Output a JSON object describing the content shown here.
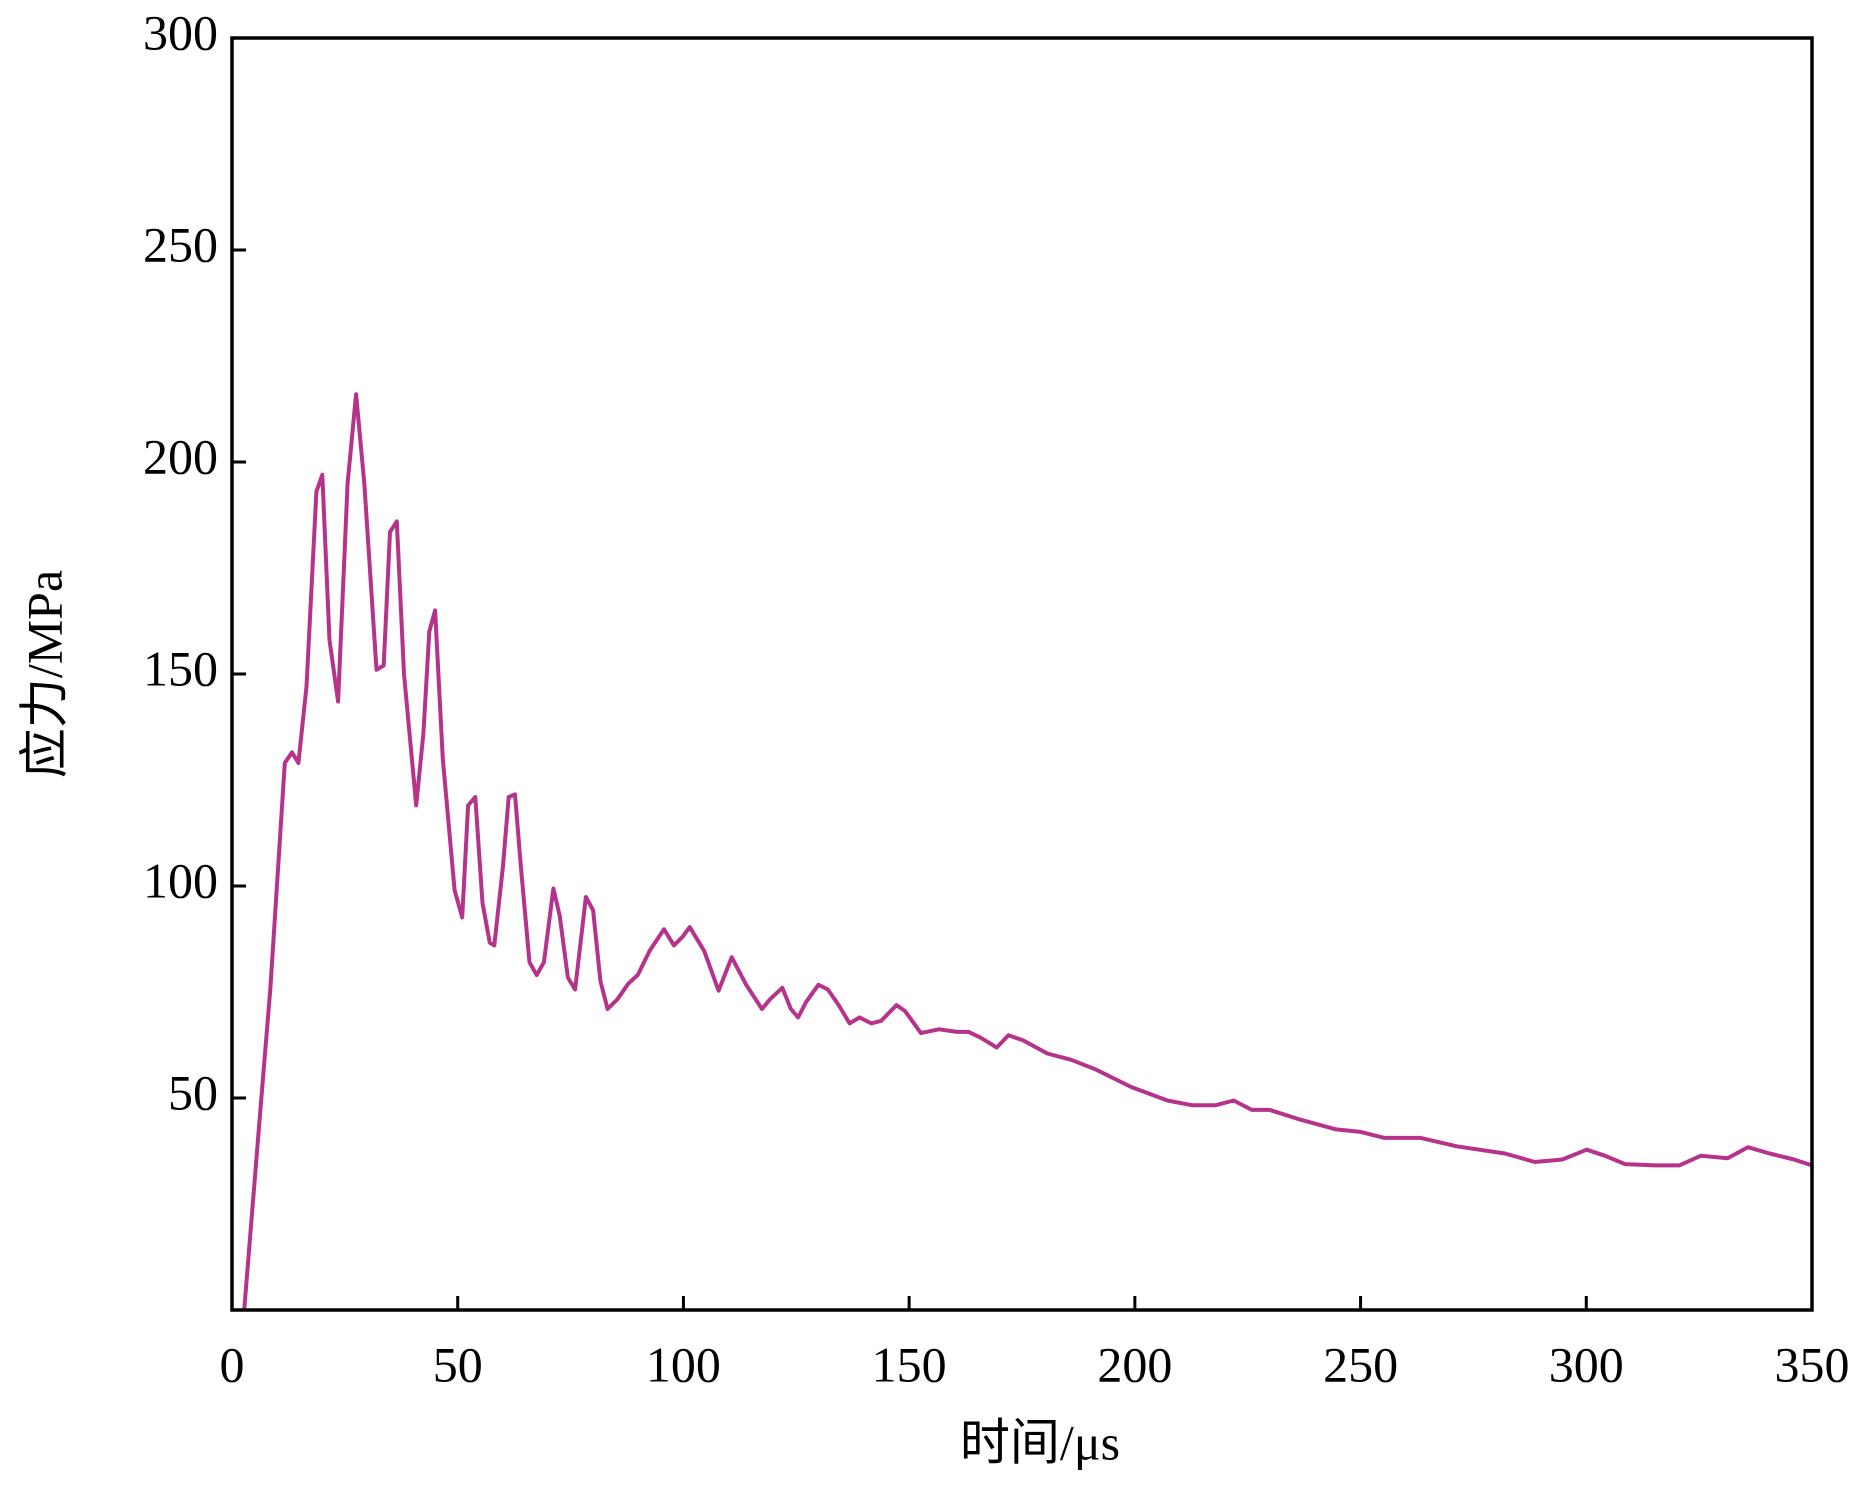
{
  "chart_data": {
    "type": "line",
    "xlabel": "时间/μs",
    "ylabel": "应力/MPa",
    "xlim": [
      0,
      350
    ],
    "xticks": [
      0,
      50,
      100,
      150,
      200,
      250,
      300,
      350
    ],
    "ylim": [
      0,
      300
    ],
    "yticks": [
      50,
      100,
      150,
      200,
      250,
      300
    ],
    "grid": false,
    "series": [
      {
        "color": "#b5338a",
        "x": [
          2.7,
          5.9,
          8.5,
          11.7,
          13.3,
          14.7,
          16.5,
          18.7,
          20,
          21.6,
          23.5,
          25.6,
          27.5,
          29.3,
          32,
          33.6,
          35,
          36.5,
          38.1,
          40.8,
          42.4,
          43.7,
          45,
          46.7,
          49.3,
          51,
          52.3,
          53.9,
          55.5,
          57.1,
          58.1,
          60,
          61.3,
          62.7,
          64,
          65.9,
          67.5,
          69.1,
          71.2,
          72.6,
          74.4,
          76,
          78.4,
          80,
          81.6,
          83.2,
          85.4,
          87.8,
          89.9,
          92.5,
          95.7,
          97.9,
          99.8,
          101.4,
          104.6,
          107.8,
          110.7,
          113.9,
          117.4,
          119.2,
          121.9,
          123.8,
          125.4,
          127.2,
          129.9,
          132,
          134.4,
          136.8,
          139,
          141.6,
          143.8,
          147.2,
          149.1,
          152.6,
          156.6,
          160.6,
          163.2,
          165.9,
          169.4,
          172,
          175.2,
          180.6,
          185.9,
          191.2,
          199.2,
          207.2,
          212.6,
          217.9,
          221.9,
          225.9,
          229.9,
          236.6,
          244.6,
          250,
          255.3,
          263.3,
          271.3,
          282,
          288.6,
          294.7,
          300.1,
          304.1,
          308.6,
          315.3,
          320.6,
          325.4,
          331.3,
          335.8,
          340.6,
          346,
          350
        ],
        "values": [
          0,
          42,
          76,
          129,
          131.5,
          129,
          147,
          193,
          197,
          158,
          143.5,
          195,
          216,
          195,
          151,
          152,
          183.5,
          186,
          150,
          119,
          136,
          160,
          165,
          130,
          99,
          92.6,
          119,
          121,
          96,
          86.6,
          86,
          104.5,
          121,
          121.6,
          104.5,
          82,
          79,
          82,
          99.4,
          93,
          78.4,
          75.6,
          97.4,
          94.3,
          77.6,
          71,
          73.3,
          77,
          79,
          84.7,
          89.8,
          86,
          88,
          90.3,
          84.7,
          75.3,
          83.2,
          76.7,
          71,
          73.3,
          76,
          71,
          69,
          72.7,
          76.7,
          75.6,
          71.9,
          67.6,
          69,
          67.6,
          68.2,
          71.9,
          70.5,
          65.3,
          66.2,
          65.6,
          65.6,
          64.2,
          61.9,
          64.8,
          63.6,
          60.5,
          59,
          56.8,
          52.6,
          49.4,
          48.3,
          48.3,
          49.4,
          47.2,
          47.2,
          44.9,
          42.6,
          42,
          40.6,
          40.6,
          38.6,
          36.9,
          34.9,
          35.5,
          37.8,
          36.4,
          34.4,
          34.1,
          34.1,
          36.4,
          35.8,
          38.4,
          36.9,
          35.5,
          34.1
        ]
      }
    ]
  }
}
